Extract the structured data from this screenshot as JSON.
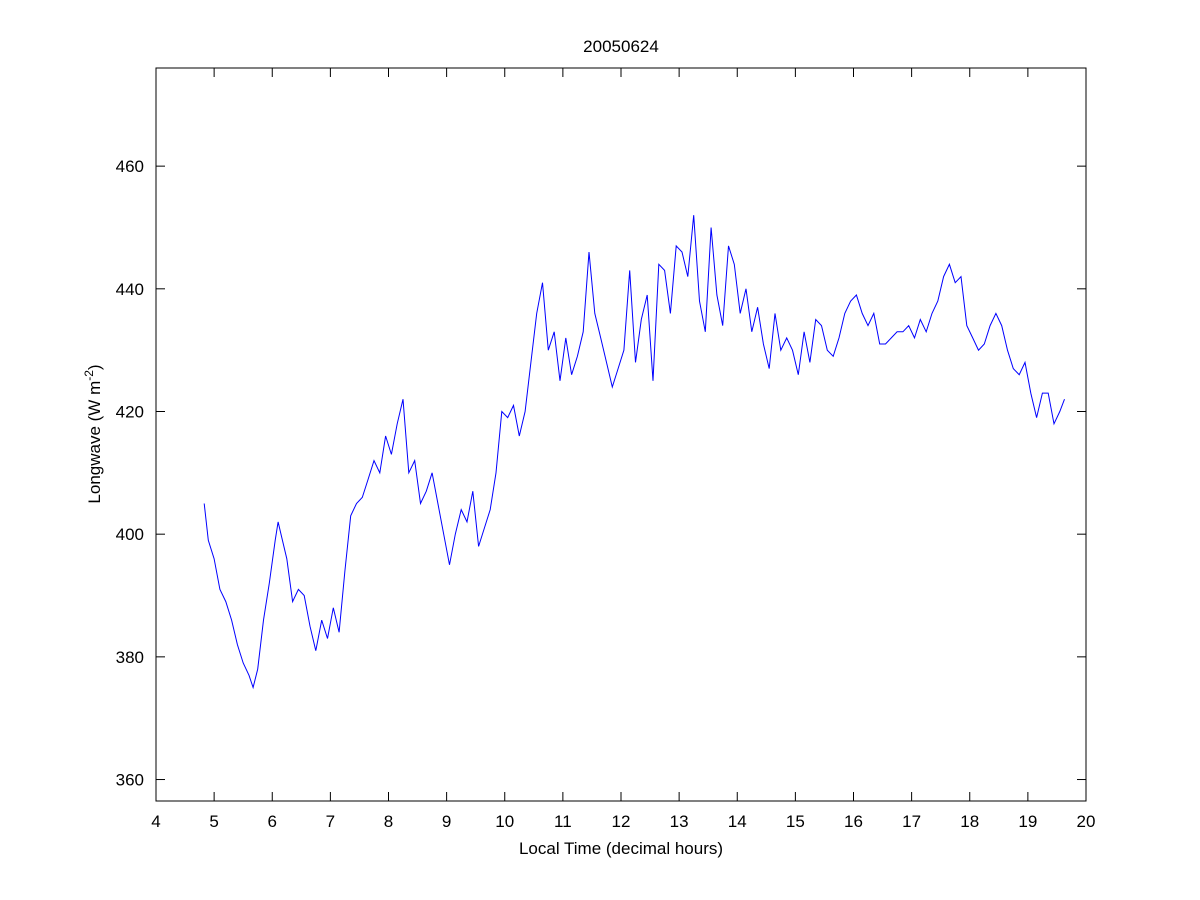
{
  "chart_data": {
    "type": "line",
    "title": "20050624",
    "xlabel": "Local Time (decimal hours)",
    "ylabel": {
      "base": "Longwave (W m",
      "sup": "-2",
      "tail": ")"
    },
    "xlim": [
      4,
      20
    ],
    "ylim": [
      356.5,
      476
    ],
    "xticks": [
      4,
      5,
      6,
      7,
      8,
      9,
      10,
      11,
      12,
      13,
      14,
      15,
      16,
      17,
      18,
      19,
      20
    ],
    "yticks": [
      360,
      380,
      400,
      420,
      440,
      460
    ],
    "grid": false,
    "line_color": "#0000ff",
    "series": [
      {
        "x": [
          4.83,
          4.9,
          5.0,
          5.1,
          5.2,
          5.3,
          5.4,
          5.5,
          5.6,
          5.67,
          5.75,
          5.85,
          5.95,
          6.05,
          6.1,
          6.15,
          6.25,
          6.35,
          6.45,
          6.55,
          6.65,
          6.75,
          6.85,
          6.95,
          7.05,
          7.15,
          7.25,
          7.35,
          7.45,
          7.55,
          7.65,
          7.75,
          7.85,
          7.95,
          8.05,
          8.15,
          8.25,
          8.35,
          8.45,
          8.55,
          8.65,
          8.75,
          8.85,
          8.95,
          9.05,
          9.15,
          9.25,
          9.35,
          9.45,
          9.55,
          9.65,
          9.75,
          9.85,
          9.95,
          10.05,
          10.15,
          10.25,
          10.35,
          10.45,
          10.55,
          10.65,
          10.75,
          10.85,
          10.95,
          11.05,
          11.15,
          11.25,
          11.35,
          11.45,
          11.55,
          11.65,
          11.75,
          11.85,
          11.95,
          12.05,
          12.15,
          12.25,
          12.35,
          12.45,
          12.55,
          12.65,
          12.75,
          12.85,
          12.95,
          13.05,
          13.15,
          13.25,
          13.35,
          13.45,
          13.55,
          13.65,
          13.75,
          13.85,
          13.95,
          14.05,
          14.15,
          14.25,
          14.35,
          14.45,
          14.55,
          14.65,
          14.75,
          14.85,
          14.95,
          15.05,
          15.15,
          15.25,
          15.35,
          15.45,
          15.55,
          15.65,
          15.75,
          15.85,
          15.95,
          16.05,
          16.15,
          16.25,
          16.35,
          16.45,
          16.55,
          16.65,
          16.75,
          16.85,
          16.95,
          17.05,
          17.15,
          17.25,
          17.35,
          17.45,
          17.55,
          17.65,
          17.75,
          17.85,
          17.95,
          18.05,
          18.15,
          18.25,
          18.35,
          18.45,
          18.55,
          18.65,
          18.75,
          18.85,
          18.95,
          19.05,
          19.15,
          19.25,
          19.35,
          19.45,
          19.55,
          19.63
        ],
        "values": [
          405,
          399,
          396,
          391,
          389,
          386,
          382,
          379,
          377,
          375,
          378,
          386,
          392,
          399,
          402,
          400,
          396,
          389,
          391,
          390,
          385,
          381,
          386,
          383,
          388,
          384,
          394,
          403,
          405,
          406,
          409,
          412,
          410,
          416,
          413,
          418,
          422,
          410,
          412,
          405,
          407,
          410,
          405,
          400,
          395,
          400,
          404,
          402,
          407,
          398,
          401,
          404,
          410,
          420,
          419,
          421,
          416,
          420,
          428,
          436,
          441,
          430,
          433,
          425,
          432,
          426,
          429,
          433,
          446,
          436,
          432,
          428,
          424,
          427,
          430,
          443,
          428,
          435,
          439,
          425,
          444,
          443,
          436,
          447,
          446,
          442,
          452,
          438,
          433,
          450,
          439,
          434,
          447,
          444,
          436,
          440,
          433,
          437,
          431,
          427,
          436,
          430,
          432,
          430,
          426,
          433,
          428,
          435,
          434,
          430,
          429,
          432,
          436,
          438,
          439,
          436,
          434,
          436,
          431,
          431,
          432,
          433,
          433,
          434,
          432,
          435,
          433,
          436,
          438,
          442,
          444,
          441,
          442,
          434,
          432,
          430,
          431,
          434,
          436,
          434,
          430,
          427,
          426,
          428,
          423,
          419,
          423,
          423,
          418,
          420,
          422
        ]
      }
    ]
  }
}
